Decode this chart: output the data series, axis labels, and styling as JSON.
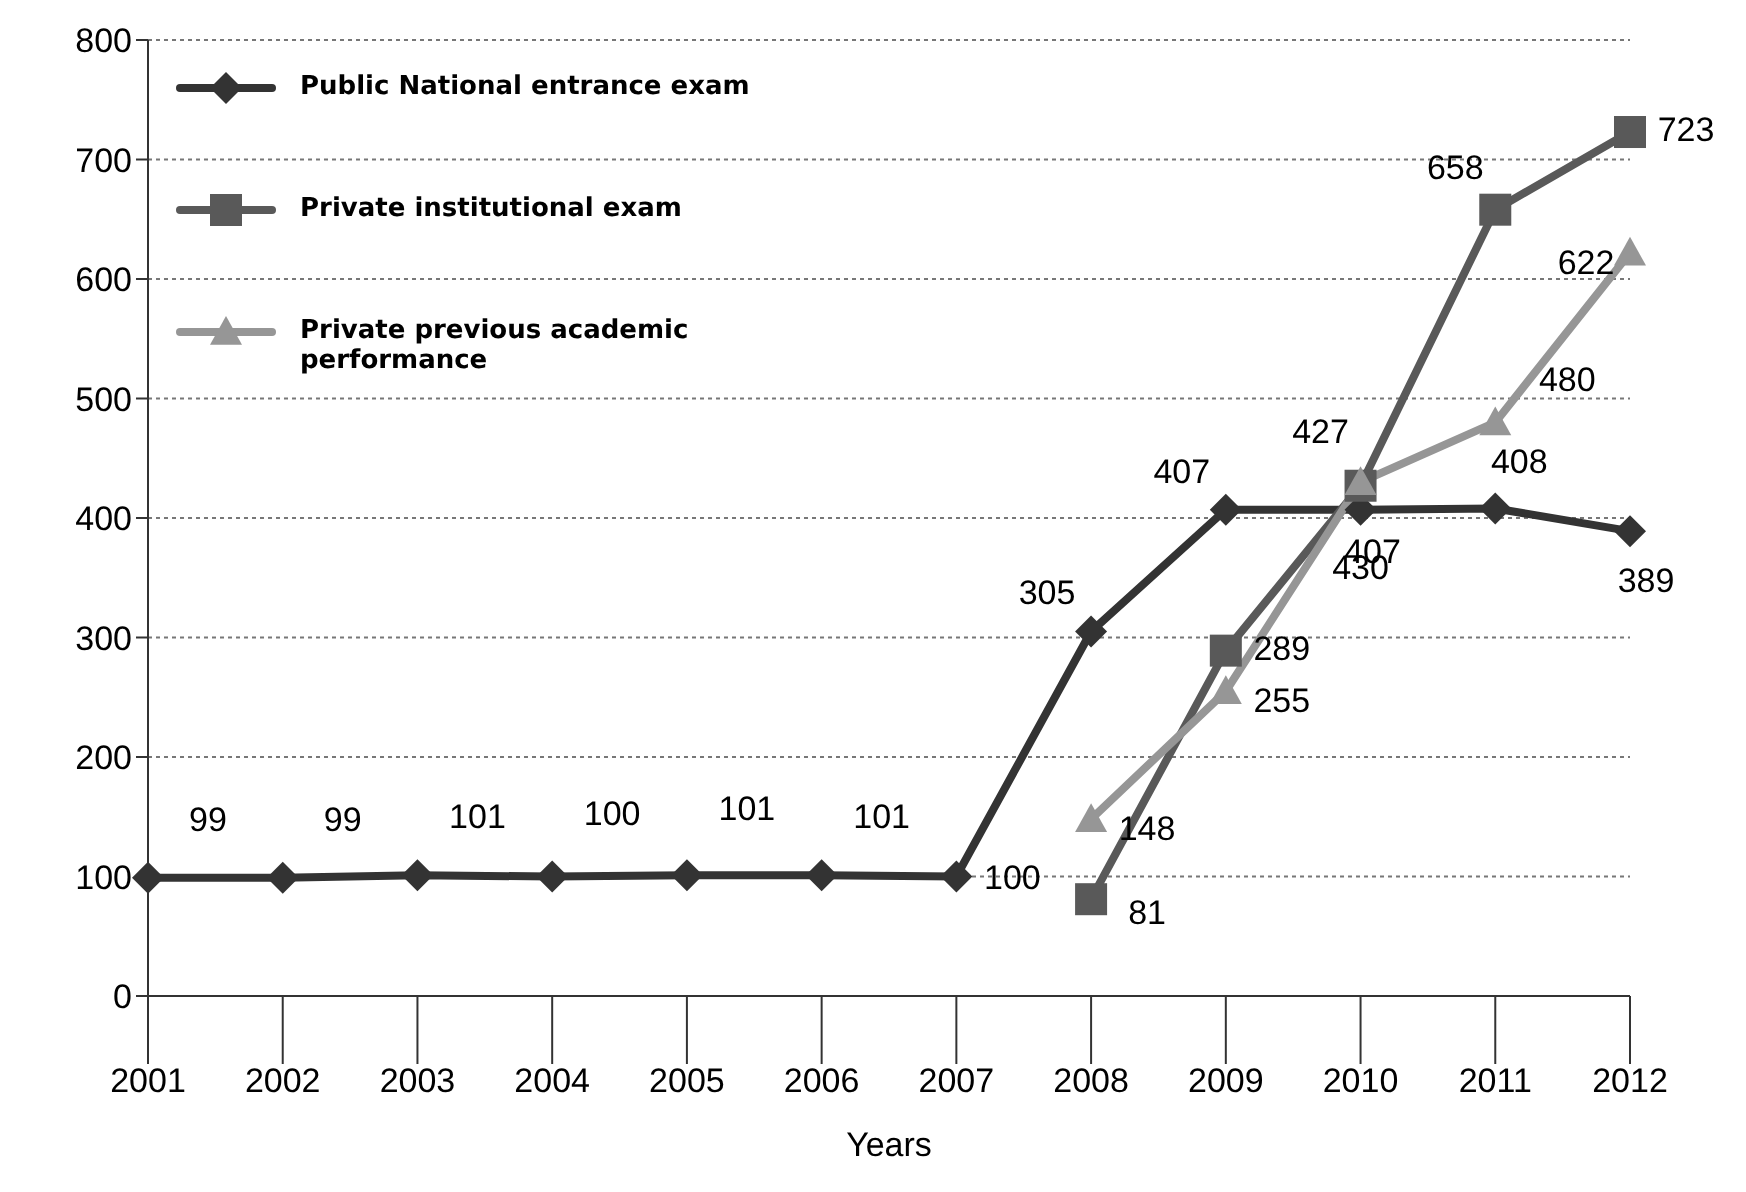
{
  "chart_data": {
    "type": "line",
    "xlabel": "Years",
    "categories": [
      "2001",
      "2002",
      "2003",
      "2004",
      "2005",
      "2006",
      "2007",
      "2008",
      "2009",
      "2010",
      "2011",
      "2012"
    ],
    "series": [
      {
        "name": "Public National entrance exam",
        "color": "#333333",
        "marker": "diamond",
        "values": [
          99,
          99,
          101,
          100,
          101,
          101,
          100,
          305,
          407,
          407,
          408,
          389
        ]
      },
      {
        "name": "Private institutional exam",
        "color": "#595959",
        "marker": "square",
        "values": [
          null,
          null,
          null,
          null,
          null,
          null,
          null,
          81,
          289,
          427,
          658,
          723
        ]
      },
      {
        "name": "Private previous academic performance",
        "color": "#969696",
        "marker": "triangle",
        "values": [
          null,
          null,
          null,
          null,
          null,
          null,
          null,
          148,
          255,
          430,
          480,
          622
        ]
      }
    ],
    "data_labels": true,
    "ylim": [
      0,
      800
    ],
    "yticks": [
      0,
      100,
      200,
      300,
      400,
      500,
      600,
      700,
      800
    ],
    "grid": "y",
    "legend": "top left",
    "line_style": "solid"
  }
}
